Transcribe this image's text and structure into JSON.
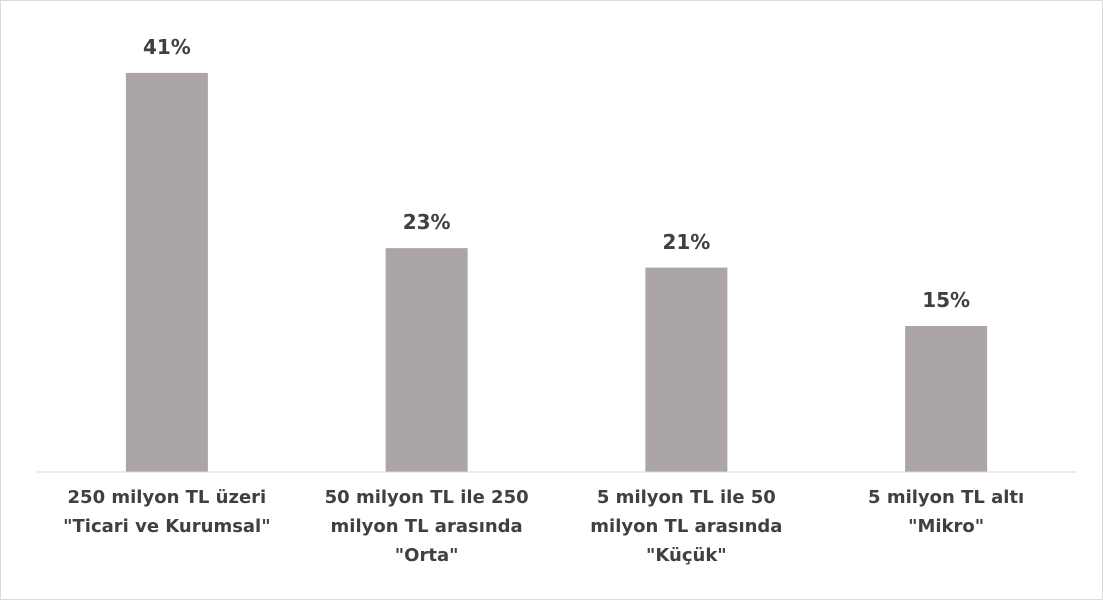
{
  "chart_data": {
    "type": "bar",
    "categories": [
      "250 milyon TL üzeri \"Ticari ve Kurumsal\"",
      "50 milyon TL ile 250 milyon TL arasında \"Orta\"",
      "5 milyon TL ile 50 milyon TL arasında \"Küçük\"",
      "5 milyon TL altı \"Mikro\""
    ],
    "values": [
      41,
      23,
      21,
      15
    ],
    "value_labels": [
      "41%",
      "23%",
      "21%",
      "15%"
    ],
    "color": "#aba6a5",
    "ylim": [
      0,
      45
    ]
  }
}
